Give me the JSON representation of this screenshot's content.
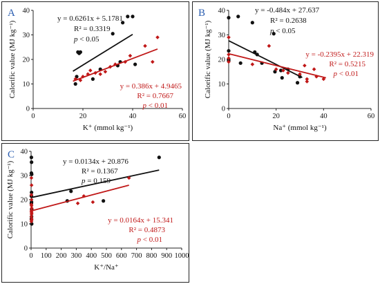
{
  "chart_data": [
    {
      "panel": "A",
      "type": "scatter",
      "xlabel": "K⁺ (mmol kg⁻¹)",
      "ylabel": "Calorific value (MJ kg⁻¹)",
      "xlim": [
        0,
        60
      ],
      "ylim": [
        0,
        40
      ],
      "xticks": [
        0,
        20,
        40,
        60
      ],
      "yticks": [
        0,
        10,
        20,
        30,
        40
      ],
      "series": [
        {
          "color": "#111111",
          "marker": "circle",
          "points": [
            [
              17,
              10
            ],
            [
              17.5,
              13
            ],
            [
              18,
              23
            ],
            [
              18.5,
              22.5
            ],
            [
              19,
              23
            ],
            [
              24,
              12
            ],
            [
              27,
              16
            ],
            [
              32,
              30.5
            ],
            [
              34,
              17.5
            ],
            [
              35,
              19
            ],
            [
              36,
              35
            ],
            [
              38,
              37.5
            ],
            [
              40,
              37.5
            ],
            [
              41,
              18
            ]
          ],
          "fit": {
            "slope": 0.6261,
            "intercept": 5.1781,
            "x_range": [
              16,
              40
            ]
          },
          "annotation": [
            "y = 0.6261x + 5.1781",
            "R² = 0.3319",
            "p < 0.05"
          ]
        },
        {
          "color": "#c01818",
          "marker": "diamond",
          "points": [
            [
              17,
              12
            ],
            [
              19,
              11.5
            ],
            [
              20,
              13
            ],
            [
              22,
              14
            ],
            [
              23,
              15.5
            ],
            [
              25,
              14.5
            ],
            [
              27,
              14
            ],
            [
              29,
              15
            ],
            [
              31,
              17
            ],
            [
              33,
              18
            ],
            [
              37,
              19
            ],
            [
              39,
              21.5
            ],
            [
              45,
              25.5
            ],
            [
              48,
              19
            ],
            [
              50,
              29
            ]
          ],
          "fit": {
            "slope": 0.386,
            "intercept": 4.9465,
            "x_range": [
              16,
              50
            ]
          },
          "annotation": [
            "y = 0.386x + 4.9465",
            "R² = 0.7667",
            "p < 0.01"
          ]
        }
      ]
    },
    {
      "panel": "B",
      "type": "scatter",
      "xlabel": "Na⁺ (mmol kg⁻¹)",
      "ylabel": "Calorific value (MJ kg⁻¹)",
      "xlim": [
        0,
        60
      ],
      "ylim": [
        0,
        40
      ],
      "xticks": [
        0,
        20,
        40,
        60
      ],
      "yticks": [
        0,
        10,
        20,
        30,
        40
      ],
      "series": [
        {
          "color": "#111111",
          "marker": "circle",
          "points": [
            [
              0,
              37
            ],
            [
              0,
              23.5
            ],
            [
              0,
              20
            ],
            [
              0,
              19.5
            ],
            [
              4,
              37.5
            ],
            [
              5,
              18.5
            ],
            [
              10,
              35
            ],
            [
              11,
              23
            ],
            [
              12,
              22
            ],
            [
              14,
              18.5
            ],
            [
              19,
              30.5
            ],
            [
              19.5,
              15
            ],
            [
              22,
              15.5
            ],
            [
              22.5,
              12.5
            ],
            [
              25,
              16
            ],
            [
              29,
              10.5
            ],
            [
              30,
              13
            ]
          ],
          "fit": {
            "slope": -0.484,
            "intercept": 27.637,
            "x_range": [
              0,
              31
            ]
          },
          "annotation": [
            "y = -0.484x + 27.637",
            "R² = 0.2638",
            "p < 0.05"
          ]
        },
        {
          "color": "#c01818",
          "marker": "diamond",
          "points": [
            [
              0,
              29
            ],
            [
              0,
              22
            ],
            [
              0,
              20.5
            ],
            [
              0,
              19
            ],
            [
              10,
              18
            ],
            [
              17,
              25.5
            ],
            [
              20,
              16
            ],
            [
              23,
              15.5
            ],
            [
              25,
              14.5
            ],
            [
              30,
              14
            ],
            [
              32,
              17.5
            ],
            [
              33,
              12
            ],
            [
              33,
              11
            ],
            [
              36,
              16
            ],
            [
              37,
              13
            ],
            [
              40,
              12
            ]
          ],
          "fit": {
            "slope": -0.2395,
            "intercept": 22.319,
            "x_range": [
              0,
              41
            ]
          },
          "annotation": [
            "y = -0.2395x + 22.319",
            "R² = 0.5215",
            "p < 0.01"
          ]
        }
      ]
    },
    {
      "panel": "C",
      "type": "scatter",
      "xlabel": "K⁺/Na⁺",
      "ylabel": "Calorific value (MJ kg⁻¹)",
      "xlim": [
        0,
        1000
      ],
      "ylim": [
        0,
        40
      ],
      "xticks": [
        0,
        100,
        200,
        300,
        400,
        500,
        600,
        700,
        800,
        900,
        1000
      ],
      "yticks": [
        0,
        10,
        20,
        30,
        40
      ],
      "series": [
        {
          "color": "#111111",
          "marker": "circle",
          "points": [
            [
              2,
              37.5
            ],
            [
              3,
              35.5
            ],
            [
              2,
              31
            ],
            [
              4,
              30.5
            ],
            [
              3,
              23
            ],
            [
              2,
              21.5
            ],
            [
              3,
              19
            ],
            [
              2,
              18.5
            ],
            [
              4,
              16
            ],
            [
              3,
              13
            ],
            [
              2,
              12
            ],
            [
              4,
              10
            ],
            [
              240,
              19.5
            ],
            [
              265,
              23.5
            ],
            [
              480,
              19.5
            ],
            [
              850,
              37.5
            ]
          ],
          "fit": {
            "slope": 0.0134,
            "intercept": 20.876,
            "x_range": [
              0,
              850
            ]
          },
          "annotation": [
            "y = 0.0134x + 20.876",
            "R² = 0.1367",
            "p = 0.159"
          ]
        },
        {
          "color": "#c01818",
          "marker": "diamond",
          "points": [
            [
              2,
              29
            ],
            [
              3,
              26
            ],
            [
              2,
              22
            ],
            [
              3,
              20
            ],
            [
              2,
              18
            ],
            [
              3,
              17.5
            ],
            [
              4,
              16.5
            ],
            [
              3,
              15.5
            ],
            [
              2,
              15
            ],
            [
              4,
              14.5
            ],
            [
              3,
              14
            ],
            [
              2,
              13
            ],
            [
              4,
              12
            ],
            [
              3,
              11.5
            ],
            [
              2,
              11
            ],
            [
              310,
              18.5
            ],
            [
              350,
              21.5
            ],
            [
              410,
              19
            ],
            [
              650,
              29
            ]
          ],
          "fit": {
            "slope": 0.0164,
            "intercept": 15.341,
            "x_range": [
              0,
              650
            ]
          },
          "annotation": [
            "y = 0.0164x + 15.341",
            "R² = 0.4873",
            "p < 0.01"
          ]
        }
      ]
    }
  ]
}
